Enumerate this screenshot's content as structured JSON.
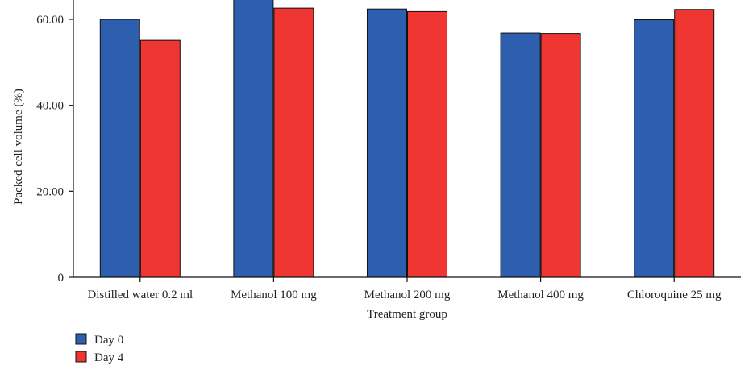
{
  "chart_data": {
    "type": "bar",
    "title": "",
    "xlabel": "Treatment group",
    "ylabel": "Packed cell volume (%)",
    "ylim": [
      0,
      60
    ],
    "yticks": [
      {
        "value": 0,
        "label": "0"
      },
      {
        "value": 20,
        "label": "20.00"
      },
      {
        "value": 40,
        "label": "40.00"
      },
      {
        "value": 60,
        "label": "60.00"
      }
    ],
    "categories": [
      "Distilled water 0.2 ml",
      "Methanol 100 mg",
      "Methanol 200 mg",
      "Methanol 400 mg",
      "Chloroquine 25 mg"
    ],
    "series": [
      {
        "name": "Day 0",
        "color": "#2e5fae",
        "values": [
          60.0,
          65.5,
          62.4,
          56.8,
          59.9
        ]
      },
      {
        "name": "Day 4",
        "color": "#ef3632",
        "values": [
          55.1,
          62.6,
          61.8,
          56.7,
          62.3
        ]
      }
    ],
    "grid": false,
    "legend": "bottom-left"
  }
}
